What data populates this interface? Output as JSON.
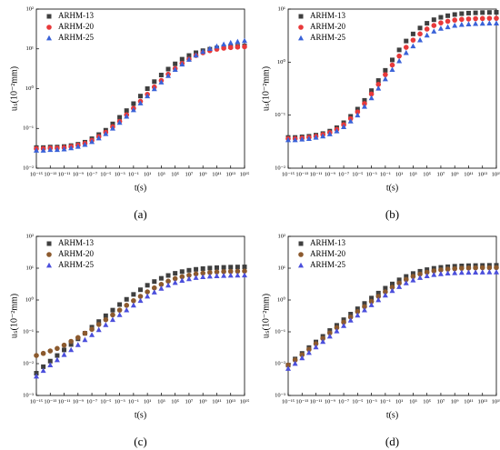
{
  "chart_data": [
    {
      "type": "scatter",
      "caption": "(a)",
      "xlabel": "t(s)",
      "ylabel": "uₛ(10⁻²mm)",
      "xlog": true,
      "ylog": true,
      "legend": "upper left",
      "x": [
        1e-15,
        1e-14,
        1e-13,
        1e-12,
        1e-11,
        1e-10,
        1e-09,
        1e-08,
        1e-07,
        1e-06,
        1e-05,
        0.0001,
        0.001,
        0.01,
        0.1,
        1,
        10.0,
        100.0,
        1000.0,
        10000.0,
        100000.0,
        1000000.0,
        10000000.0,
        100000000.0,
        1000000000.0,
        10000000000.0,
        100000000000.0,
        1000000000000.0,
        10000000000000.0,
        100000000000000.0,
        1000000000000000.0
      ],
      "xlim": [
        1e-15,
        1000000000000000.0
      ],
      "xticks": [
        {
          "value": 1e-15,
          "label": "10⁻¹⁵"
        },
        {
          "value": 1e-13,
          "label": "10⁻¹³"
        },
        {
          "value": 1e-11,
          "label": "10⁻¹¹"
        },
        {
          "value": 1e-09,
          "label": "10⁻⁹"
        },
        {
          "value": 1e-07,
          "label": "10⁻⁷"
        },
        {
          "value": 1e-05,
          "label": "10⁻⁵"
        },
        {
          "value": 0.001,
          "label": "10⁻³"
        },
        {
          "value": 0.1,
          "label": "10⁻¹"
        },
        {
          "value": 10.0,
          "label": "10¹"
        },
        {
          "value": 1000.0,
          "label": "10³"
        },
        {
          "value": 100000.0,
          "label": "10⁵"
        },
        {
          "value": 10000000.0,
          "label": "10⁷"
        },
        {
          "value": 1000000000.0,
          "label": "10⁹"
        },
        {
          "value": 100000000000.0,
          "label": "10¹¹"
        },
        {
          "value": 10000000000000.0,
          "label": "10¹³"
        },
        {
          "value": 1000000000000000.0,
          "label": "10¹⁵"
        }
      ],
      "ylim": [
        0.01,
        100
      ],
      "yticks": [
        {
          "value": 0.01,
          "label": "10⁻²"
        },
        {
          "value": 0.1,
          "label": "10⁻¹"
        },
        {
          "value": 1,
          "label": "10⁰"
        },
        {
          "value": 10,
          "label": "10¹"
        },
        {
          "value": 100,
          "label": "10²"
        }
      ],
      "series": [
        {
          "name": "ARHM-13",
          "color": "#3f3f3f",
          "marker": "square",
          "values": [
            0.033,
            0.033,
            0.034,
            0.034,
            0.035,
            0.037,
            0.04,
            0.045,
            0.055,
            0.07,
            0.09,
            0.13,
            0.19,
            0.28,
            0.42,
            0.65,
            1.0,
            1.5,
            2.2,
            3.1,
            4.2,
            5.5,
            6.8,
            8.0,
            9.0,
            9.8,
            10.5,
            11,
            11.3,
            11.6,
            11.8
          ]
        },
        {
          "name": "ARHM-20",
          "color": "#e8393a",
          "marker": "circle",
          "values": [
            0.031,
            0.031,
            0.032,
            0.032,
            0.033,
            0.035,
            0.038,
            0.042,
            0.05,
            0.062,
            0.08,
            0.11,
            0.15,
            0.22,
            0.32,
            0.48,
            0.72,
            1.1,
            1.6,
            2.3,
            3.2,
            4.3,
            5.5,
            6.8,
            8.0,
            9.0,
            9.8,
            10.4,
            10.8,
            11.1,
            11.3
          ]
        },
        {
          "name": "ARHM-25",
          "color": "#3a62d8",
          "marker": "triangle",
          "values": [
            0.028,
            0.028,
            0.029,
            0.029,
            0.03,
            0.032,
            0.035,
            0.039,
            0.046,
            0.057,
            0.073,
            0.1,
            0.14,
            0.2,
            0.29,
            0.43,
            0.65,
            0.98,
            1.45,
            2.1,
            3.0,
            4.1,
            5.4,
            6.9,
            8.5,
            10.1,
            11.6,
            13.0,
            14.2,
            15.2,
            16.0
          ]
        }
      ]
    },
    {
      "type": "scatter",
      "caption": "(b)",
      "xlabel": "t(s)",
      "ylabel": "uₛ(10⁻²mm)",
      "xlog": true,
      "ylog": true,
      "legend": "upper left",
      "x": [
        1e-15,
        1e-14,
        1e-13,
        1e-12,
        1e-11,
        1e-10,
        1e-09,
        1e-08,
        1e-07,
        1e-06,
        1e-05,
        0.0001,
        0.001,
        0.01,
        0.1,
        1,
        10.0,
        100.0,
        1000.0,
        10000.0,
        100000.0,
        1000000.0,
        10000000.0,
        100000000.0,
        1000000000.0,
        10000000000.0,
        100000000000.0,
        1000000000000.0,
        10000000000000.0,
        100000000000000.0,
        1000000000000000.0
      ],
      "xlim": [
        1e-15,
        1000000000000000.0
      ],
      "xticks": [
        {
          "value": 1e-15,
          "label": "10⁻¹⁵"
        },
        {
          "value": 1e-13,
          "label": "10⁻¹³"
        },
        {
          "value": 1e-11,
          "label": "10⁻¹¹"
        },
        {
          "value": 1e-09,
          "label": "10⁻⁹"
        },
        {
          "value": 1e-07,
          "label": "10⁻⁷"
        },
        {
          "value": 1e-05,
          "label": "10⁻⁵"
        },
        {
          "value": 0.001,
          "label": "10⁻³"
        },
        {
          "value": 0.1,
          "label": "10⁻¹"
        },
        {
          "value": 10.0,
          "label": "10¹"
        },
        {
          "value": 1000.0,
          "label": "10³"
        },
        {
          "value": 100000.0,
          "label": "10⁵"
        },
        {
          "value": 10000000.0,
          "label": "10⁷"
        },
        {
          "value": 1000000000.0,
          "label": "10⁹"
        },
        {
          "value": 100000000000.0,
          "label": "10¹¹"
        },
        {
          "value": 10000000000000.0,
          "label": "10¹³"
        },
        {
          "value": 1000000000000000.0,
          "label": "10¹⁵"
        }
      ],
      "ylim": [
        0.01,
        10
      ],
      "yticks": [
        {
          "value": 0.01,
          "label": "10⁻²"
        },
        {
          "value": 0.1,
          "label": "10⁻¹"
        },
        {
          "value": 1,
          "label": "10⁰"
        },
        {
          "value": 10,
          "label": "10¹"
        }
      ],
      "series": [
        {
          "name": "ARHM-13",
          "color": "#3f3f3f",
          "marker": "square",
          "values": [
            0.038,
            0.038,
            0.039,
            0.04,
            0.042,
            0.045,
            0.05,
            0.058,
            0.072,
            0.095,
            0.13,
            0.19,
            0.29,
            0.45,
            0.7,
            1.1,
            1.7,
            2.5,
            3.4,
            4.4,
            5.4,
            6.3,
            7.0,
            7.5,
            7.9,
            8.2,
            8.4,
            8.5,
            8.6,
            8.65,
            8.7
          ]
        },
        {
          "name": "ARHM-20",
          "color": "#e8393a",
          "marker": "circle",
          "values": [
            0.036,
            0.036,
            0.037,
            0.038,
            0.04,
            0.043,
            0.047,
            0.054,
            0.066,
            0.086,
            0.115,
            0.165,
            0.25,
            0.38,
            0.58,
            0.88,
            1.3,
            1.9,
            2.6,
            3.4,
            4.2,
            4.9,
            5.5,
            5.9,
            6.2,
            6.4,
            6.5,
            6.6,
            6.65,
            6.7,
            6.7
          ]
        },
        {
          "name": "ARHM-25",
          "color": "#3a62d8",
          "marker": "triangle",
          "values": [
            0.034,
            0.034,
            0.035,
            0.036,
            0.038,
            0.04,
            0.044,
            0.05,
            0.06,
            0.077,
            0.1,
            0.145,
            0.21,
            0.32,
            0.48,
            0.72,
            1.05,
            1.5,
            2.0,
            2.6,
            3.2,
            3.8,
            4.3,
            4.6,
            4.9,
            5.1,
            5.2,
            5.3,
            5.35,
            5.4,
            5.4
          ]
        }
      ]
    },
    {
      "type": "scatter",
      "caption": "(c)",
      "xlabel": "t(s)",
      "ylabel": "uₛ(10⁻²mm)",
      "xlog": true,
      "ylog": true,
      "legend": "upper left",
      "x": [
        1e-15,
        1e-14,
        1e-13,
        1e-12,
        1e-11,
        1e-10,
        1e-09,
        1e-08,
        1e-07,
        1e-06,
        1e-05,
        0.0001,
        0.001,
        0.01,
        0.1,
        1,
        10.0,
        100.0,
        1000.0,
        10000.0,
        100000.0,
        1000000.0,
        10000000.0,
        100000000.0,
        1000000000.0,
        10000000000.0,
        100000000000.0,
        1000000000000.0,
        10000000000000.0,
        100000000000000.0,
        1000000000000000.0
      ],
      "xlim": [
        1e-15,
        1000000000000000.0
      ],
      "xticks": [
        {
          "value": 1e-15,
          "label": "10⁻¹⁵"
        },
        {
          "value": 1e-13,
          "label": "10⁻¹³"
        },
        {
          "value": 1e-11,
          "label": "10⁻¹¹"
        },
        {
          "value": 1e-09,
          "label": "10⁻⁹"
        },
        {
          "value": 1e-07,
          "label": "10⁻⁷"
        },
        {
          "value": 1e-05,
          "label": "10⁻⁵"
        },
        {
          "value": 0.001,
          "label": "10⁻³"
        },
        {
          "value": 0.1,
          "label": "10⁻¹"
        },
        {
          "value": 10.0,
          "label": "10¹"
        },
        {
          "value": 1000.0,
          "label": "10³"
        },
        {
          "value": 100000.0,
          "label": "10⁵"
        },
        {
          "value": 10000000.0,
          "label": "10⁷"
        },
        {
          "value": 1000000000.0,
          "label": "10⁹"
        },
        {
          "value": 100000000000.0,
          "label": "10¹¹"
        },
        {
          "value": 10000000000000.0,
          "label": "10¹³"
        },
        {
          "value": 1000000000000000.0,
          "label": "10¹⁵"
        }
      ],
      "ylim": [
        0.001,
        100
      ],
      "yticks": [
        {
          "value": 0.001,
          "label": "10⁻³"
        },
        {
          "value": 0.01,
          "label": "10⁻²"
        },
        {
          "value": 0.1,
          "label": "10⁻¹"
        },
        {
          "value": 1,
          "label": "10⁰"
        },
        {
          "value": 10,
          "label": "10¹"
        },
        {
          "value": 100,
          "label": "10²"
        }
      ],
      "series": [
        {
          "name": "ARHM-13",
          "color": "#3f3f3f",
          "marker": "square",
          "values": [
            0.005,
            0.008,
            0.012,
            0.018,
            0.027,
            0.04,
            0.06,
            0.09,
            0.14,
            0.21,
            0.32,
            0.48,
            0.72,
            1.05,
            1.5,
            2.1,
            2.9,
            3.8,
            4.8,
            5.9,
            6.9,
            7.8,
            8.6,
            9.2,
            9.7,
            10.1,
            10.4,
            10.6,
            10.8,
            10.9,
            11
          ]
        },
        {
          "name": "ARHM-20",
          "color": "#8c5a2e",
          "marker": "circle",
          "values": [
            0.018,
            0.021,
            0.025,
            0.03,
            0.038,
            0.05,
            0.066,
            0.09,
            0.12,
            0.17,
            0.24,
            0.34,
            0.48,
            0.68,
            0.95,
            1.3,
            1.8,
            2.4,
            3.1,
            3.9,
            4.7,
            5.4,
            6.0,
            6.6,
            7.0,
            7.3,
            7.6,
            7.8,
            7.9,
            8.0,
            8.1
          ]
        },
        {
          "name": "ARHM-25",
          "color": "#4b4fdc",
          "marker": "triangle",
          "values": [
            0.004,
            0.006,
            0.009,
            0.013,
            0.019,
            0.027,
            0.039,
            0.056,
            0.08,
            0.115,
            0.165,
            0.24,
            0.34,
            0.48,
            0.68,
            0.95,
            1.3,
            1.75,
            2.3,
            2.9,
            3.5,
            4.1,
            4.6,
            5.0,
            5.3,
            5.55,
            5.7,
            5.8,
            5.9,
            5.95,
            6.0
          ]
        }
      ]
    },
    {
      "type": "scatter",
      "caption": "(d)",
      "xlabel": "t(s)",
      "ylabel": "uₛ(10⁻²mm)",
      "xlog": true,
      "ylog": true,
      "legend": "upper left",
      "x": [
        1e-15,
        1e-14,
        1e-13,
        1e-12,
        1e-11,
        1e-10,
        1e-09,
        1e-08,
        1e-07,
        1e-06,
        1e-05,
        0.0001,
        0.001,
        0.01,
        0.1,
        1,
        10.0,
        100.0,
        1000.0,
        10000.0,
        100000.0,
        1000000.0,
        10000000.0,
        100000000.0,
        1000000000.0,
        10000000000.0,
        100000000000.0,
        1000000000000.0,
        10000000000000.0,
        100000000000000.0,
        1000000000000000.0
      ],
      "xlim": [
        1e-15,
        1000000000000000.0
      ],
      "xticks": [
        {
          "value": 1e-15,
          "label": "10⁻¹⁵"
        },
        {
          "value": 1e-13,
          "label": "10⁻¹³"
        },
        {
          "value": 1e-11,
          "label": "10⁻¹¹"
        },
        {
          "value": 1e-09,
          "label": "10⁻⁹"
        },
        {
          "value": 1e-07,
          "label": "10⁻⁷"
        },
        {
          "value": 1e-05,
          "label": "10⁻⁵"
        },
        {
          "value": 0.001,
          "label": "10⁻³"
        },
        {
          "value": 0.1,
          "label": "10⁻¹"
        },
        {
          "value": 10.0,
          "label": "10¹"
        },
        {
          "value": 1000.0,
          "label": "10³"
        },
        {
          "value": 100000.0,
          "label": "10⁵"
        },
        {
          "value": 10000000.0,
          "label": "10⁷"
        },
        {
          "value": 1000000000.0,
          "label": "10⁹"
        },
        {
          "value": 100000000000.0,
          "label": "10¹¹"
        },
        {
          "value": 10000000000000.0,
          "label": "10¹³"
        },
        {
          "value": 1000000000000000.0,
          "label": "10¹⁵"
        }
      ],
      "ylim": [
        0.001,
        100
      ],
      "yticks": [
        {
          "value": 0.001,
          "label": "10⁻³"
        },
        {
          "value": 0.01,
          "label": "10⁻²"
        },
        {
          "value": 0.1,
          "label": "10⁻¹"
        },
        {
          "value": 1,
          "label": "10⁰"
        },
        {
          "value": 10,
          "label": "10¹"
        },
        {
          "value": 100,
          "label": "10²"
        }
      ],
      "series": [
        {
          "name": "ARHM-13",
          "color": "#3f3f3f",
          "marker": "square",
          "values": [
            0.009,
            0.014,
            0.021,
            0.032,
            0.048,
            0.072,
            0.11,
            0.16,
            0.24,
            0.36,
            0.53,
            0.78,
            1.15,
            1.65,
            2.35,
            3.2,
            4.3,
            5.5,
            6.8,
            8.0,
            9.0,
            9.9,
            10.6,
            11.1,
            11.5,
            11.8,
            12,
            12.1,
            12.2,
            12.3,
            12.3
          ]
        },
        {
          "name": "ARHM-20",
          "color": "#8c5a2e",
          "marker": "circle",
          "values": [
            0.009,
            0.013,
            0.019,
            0.028,
            0.042,
            0.062,
            0.092,
            0.135,
            0.2,
            0.29,
            0.43,
            0.62,
            0.9,
            1.3,
            1.8,
            2.5,
            3.4,
            4.4,
            5.5,
            6.5,
            7.4,
            8.2,
            8.8,
            9.3,
            9.6,
            9.9,
            10.1,
            10.2,
            10.3,
            10.3,
            10.4
          ]
        },
        {
          "name": "ARHM-25",
          "color": "#4b4fdc",
          "marker": "triangle",
          "values": [
            0.007,
            0.01,
            0.015,
            0.022,
            0.033,
            0.049,
            0.072,
            0.105,
            0.155,
            0.23,
            0.33,
            0.48,
            0.7,
            1.0,
            1.4,
            1.95,
            2.6,
            3.4,
            4.2,
            5.0,
            5.7,
            6.2,
            6.6,
            6.9,
            7.1,
            7.25,
            7.35,
            7.4,
            7.45,
            7.5,
            7.5
          ]
        }
      ]
    }
  ]
}
